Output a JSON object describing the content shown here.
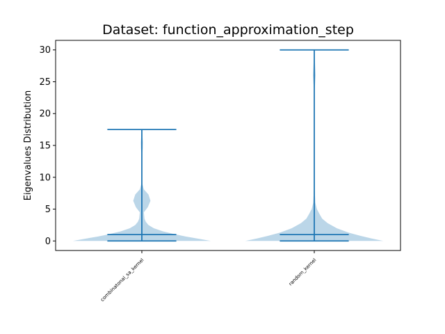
{
  "chart_data": {
    "type": "violin",
    "title": "Dataset: function_approximation_step",
    "xlabel": "",
    "ylabel": "Eigenvalues Distribution",
    "ylim": [
      -1.5,
      31.5
    ],
    "yticks": [
      0,
      5,
      10,
      15,
      20,
      25,
      30
    ],
    "categories": [
      "combinatonal_sa_kernel",
      "random_kernel"
    ],
    "violins": [
      {
        "name": "combinatonal_sa_kernel",
        "min": 0,
        "max": 17.5,
        "median": 1.0,
        "density": [
          [
            0,
            0.52
          ],
          [
            0.3,
            0.44
          ],
          [
            0.7,
            0.33
          ],
          [
            1.0,
            0.26
          ],
          [
            1.5,
            0.16
          ],
          [
            2.0,
            0.09
          ],
          [
            2.5,
            0.05
          ],
          [
            3.0,
            0.03
          ],
          [
            3.5,
            0.02
          ],
          [
            4.5,
            0.015
          ],
          [
            5.3,
            0.045
          ],
          [
            6.3,
            0.065
          ],
          [
            7.3,
            0.05
          ],
          [
            8.1,
            0.015
          ],
          [
            9.0,
            0.003
          ],
          [
            13.5,
            0.001
          ],
          [
            14.5,
            0.007
          ],
          [
            15.5,
            0.008
          ],
          [
            16.5,
            0.004
          ],
          [
            17.5,
            0.001
          ]
        ]
      },
      {
        "name": "random_kernel",
        "min": 0,
        "max": 30.0,
        "median": 1.0,
        "density": [
          [
            0,
            0.52
          ],
          [
            0.4,
            0.43
          ],
          [
            0.8,
            0.35
          ],
          [
            1.3,
            0.26
          ],
          [
            2.0,
            0.17
          ],
          [
            2.8,
            0.1
          ],
          [
            3.5,
            0.06
          ],
          [
            4.2,
            0.04
          ],
          [
            5.0,
            0.02
          ],
          [
            6.0,
            0.008
          ],
          [
            8.0,
            0.003
          ],
          [
            23.5,
            0.001
          ],
          [
            24.5,
            0.005
          ],
          [
            26.0,
            0.01
          ],
          [
            27.3,
            0.007
          ],
          [
            28.8,
            0.003
          ],
          [
            30.0,
            0.001
          ]
        ]
      }
    ],
    "colors": {
      "fill": "#1f77b4",
      "line": "#1f77b4"
    },
    "grid": false
  }
}
